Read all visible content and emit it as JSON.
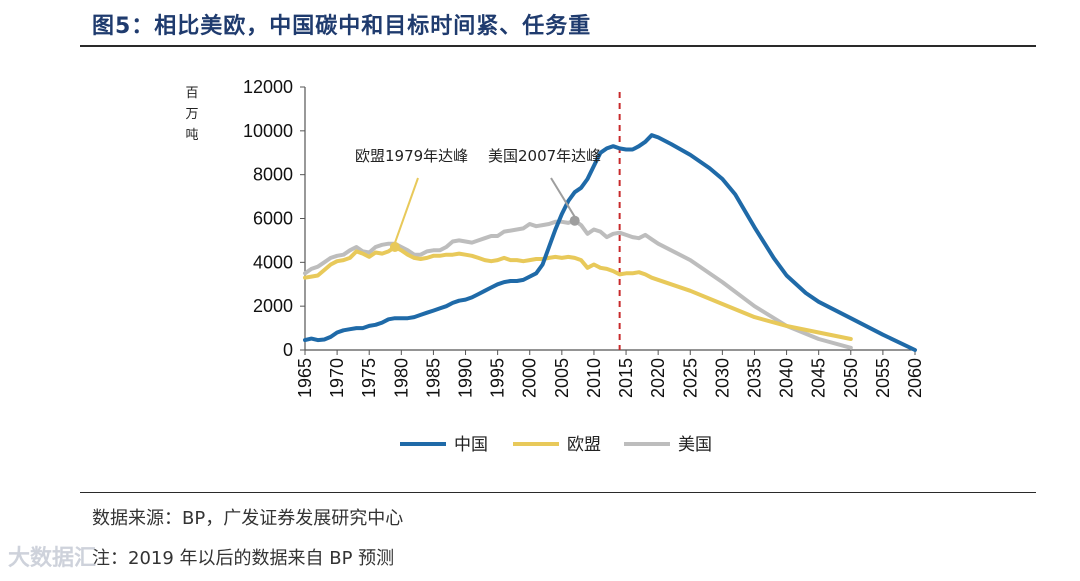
{
  "title": "图5：相比美欧，中国碳中和目标时间紧、任务重",
  "source": "数据来源：BP，广发证券发展研究中心",
  "note": "注：2019 年以后的数据来自 BP 预测",
  "watermark": "大数据汇",
  "colors": {
    "china": "#1f6aa8",
    "eu": "#e8c95a",
    "us": "#bdbdbd",
    "marker": "#c8292b"
  },
  "chart_data": {
    "type": "line",
    "title": "",
    "ylabel": "百万吨",
    "xlabel": "",
    "xlim": [
      1965,
      2060
    ],
    "ylim": [
      0,
      12000
    ],
    "yticks": [
      0,
      2000,
      4000,
      6000,
      8000,
      10000,
      12000
    ],
    "xticks": [
      1965,
      1970,
      1975,
      1980,
      1985,
      1990,
      1995,
      2000,
      2005,
      2010,
      2015,
      2020,
      2025,
      2030,
      2035,
      2040,
      2045,
      2050,
      2055,
      2060
    ],
    "grid": false,
    "legend_position": "bottom",
    "vline_year": 2014,
    "series": [
      {
        "name": "中国",
        "key": "china",
        "points": [
          [
            1965,
            450
          ],
          [
            1966,
            520
          ],
          [
            1967,
            450
          ],
          [
            1968,
            480
          ],
          [
            1969,
            600
          ],
          [
            1970,
            800
          ],
          [
            1971,
            900
          ],
          [
            1972,
            950
          ],
          [
            1973,
            1000
          ],
          [
            1974,
            1000
          ],
          [
            1975,
            1100
          ],
          [
            1976,
            1150
          ],
          [
            1977,
            1250
          ],
          [
            1978,
            1400
          ],
          [
            1979,
            1450
          ],
          [
            1980,
            1450
          ],
          [
            1981,
            1450
          ],
          [
            1982,
            1500
          ],
          [
            1983,
            1600
          ],
          [
            1984,
            1700
          ],
          [
            1985,
            1800
          ],
          [
            1986,
            1900
          ],
          [
            1987,
            2000
          ],
          [
            1988,
            2150
          ],
          [
            1989,
            2250
          ],
          [
            1990,
            2300
          ],
          [
            1991,
            2400
          ],
          [
            1992,
            2550
          ],
          [
            1993,
            2700
          ],
          [
            1994,
            2850
          ],
          [
            1995,
            3000
          ],
          [
            1996,
            3100
          ],
          [
            1997,
            3150
          ],
          [
            1998,
            3150
          ],
          [
            1999,
            3200
          ],
          [
            2000,
            3350
          ],
          [
            2001,
            3500
          ],
          [
            2002,
            3900
          ],
          [
            2003,
            4700
          ],
          [
            2004,
            5500
          ],
          [
            2005,
            6200
          ],
          [
            2006,
            6800
          ],
          [
            2007,
            7200
          ],
          [
            2008,
            7400
          ],
          [
            2009,
            7800
          ],
          [
            2010,
            8400
          ],
          [
            2011,
            9000
          ],
          [
            2012,
            9200
          ],
          [
            2013,
            9300
          ],
          [
            2014,
            9200
          ],
          [
            2015,
            9150
          ],
          [
            2016,
            9150
          ],
          [
            2017,
            9300
          ],
          [
            2018,
            9500
          ],
          [
            2019,
            9800
          ],
          [
            2020,
            9700
          ],
          [
            2022,
            9400
          ],
          [
            2025,
            8900
          ],
          [
            2028,
            8300
          ],
          [
            2030,
            7800
          ],
          [
            2032,
            7100
          ],
          [
            2035,
            5600
          ],
          [
            2038,
            4200
          ],
          [
            2040,
            3400
          ],
          [
            2043,
            2600
          ],
          [
            2045,
            2200
          ],
          [
            2050,
            1450
          ],
          [
            2055,
            700
          ],
          [
            2060,
            0
          ]
        ]
      },
      {
        "name": "欧盟",
        "key": "eu",
        "points": [
          [
            1965,
            3300
          ],
          [
            1966,
            3350
          ],
          [
            1967,
            3400
          ],
          [
            1968,
            3650
          ],
          [
            1969,
            3900
          ],
          [
            1970,
            4050
          ],
          [
            1971,
            4100
          ],
          [
            1972,
            4200
          ],
          [
            1973,
            4500
          ],
          [
            1974,
            4400
          ],
          [
            1975,
            4250
          ],
          [
            1976,
            4450
          ],
          [
            1977,
            4400
          ],
          [
            1978,
            4500
          ],
          [
            1979,
            4700
          ],
          [
            1980,
            4550
          ],
          [
            1981,
            4350
          ],
          [
            1982,
            4200
          ],
          [
            1983,
            4150
          ],
          [
            1984,
            4200
          ],
          [
            1985,
            4300
          ],
          [
            1986,
            4300
          ],
          [
            1987,
            4350
          ],
          [
            1988,
            4350
          ],
          [
            1989,
            4400
          ],
          [
            1990,
            4350
          ],
          [
            1991,
            4300
          ],
          [
            1992,
            4200
          ],
          [
            1993,
            4100
          ],
          [
            1994,
            4050
          ],
          [
            1995,
            4100
          ],
          [
            1996,
            4200
          ],
          [
            1997,
            4100
          ],
          [
            1998,
            4100
          ],
          [
            1999,
            4050
          ],
          [
            2000,
            4100
          ],
          [
            2001,
            4150
          ],
          [
            2002,
            4150
          ],
          [
            2003,
            4200
          ],
          [
            2004,
            4250
          ],
          [
            2005,
            4200
          ],
          [
            2006,
            4250
          ],
          [
            2007,
            4200
          ],
          [
            2008,
            4100
          ],
          [
            2009,
            3750
          ],
          [
            2010,
            3900
          ],
          [
            2011,
            3750
          ],
          [
            2012,
            3700
          ],
          [
            2013,
            3600
          ],
          [
            2014,
            3450
          ],
          [
            2015,
            3500
          ],
          [
            2016,
            3500
          ],
          [
            2017,
            3550
          ],
          [
            2018,
            3450
          ],
          [
            2019,
            3300
          ],
          [
            2025,
            2700
          ],
          [
            2030,
            2100
          ],
          [
            2035,
            1500
          ],
          [
            2040,
            1100
          ],
          [
            2045,
            800
          ],
          [
            2050,
            500
          ]
        ]
      },
      {
        "name": "美国",
        "key": "us",
        "points": [
          [
            1965,
            3500
          ],
          [
            1966,
            3700
          ],
          [
            1967,
            3800
          ],
          [
            1968,
            4000
          ],
          [
            1969,
            4200
          ],
          [
            1970,
            4300
          ],
          [
            1971,
            4350
          ],
          [
            1972,
            4550
          ],
          [
            1973,
            4700
          ],
          [
            1974,
            4500
          ],
          [
            1975,
            4450
          ],
          [
            1976,
            4700
          ],
          [
            1977,
            4800
          ],
          [
            1978,
            4850
          ],
          [
            1979,
            4850
          ],
          [
            1980,
            4700
          ],
          [
            1981,
            4550
          ],
          [
            1982,
            4350
          ],
          [
            1983,
            4350
          ],
          [
            1984,
            4500
          ],
          [
            1985,
            4550
          ],
          [
            1986,
            4550
          ],
          [
            1987,
            4700
          ],
          [
            1988,
            4950
          ],
          [
            1989,
            5000
          ],
          [
            1990,
            4950
          ],
          [
            1991,
            4900
          ],
          [
            1992,
            5000
          ],
          [
            1993,
            5100
          ],
          [
            1994,
            5200
          ],
          [
            1995,
            5200
          ],
          [
            1996,
            5400
          ],
          [
            1997,
            5450
          ],
          [
            1998,
            5500
          ],
          [
            1999,
            5550
          ],
          [
            2000,
            5750
          ],
          [
            2001,
            5650
          ],
          [
            2002,
            5700
          ],
          [
            2003,
            5750
          ],
          [
            2004,
            5850
          ],
          [
            2005,
            5850
          ],
          [
            2006,
            5800
          ],
          [
            2007,
            5900
          ],
          [
            2008,
            5700
          ],
          [
            2009,
            5300
          ],
          [
            2010,
            5500
          ],
          [
            2011,
            5400
          ],
          [
            2012,
            5150
          ],
          [
            2013,
            5300
          ],
          [
            2014,
            5350
          ],
          [
            2015,
            5250
          ],
          [
            2016,
            5150
          ],
          [
            2017,
            5100
          ],
          [
            2018,
            5250
          ],
          [
            2019,
            5050
          ],
          [
            2020,
            4850
          ],
          [
            2025,
            4100
          ],
          [
            2030,
            3100
          ],
          [
            2035,
            2000
          ],
          [
            2040,
            1100
          ],
          [
            2045,
            500
          ],
          [
            2050,
            100
          ]
        ]
      }
    ],
    "annotations": [
      {
        "text": "欧盟1979年达峰",
        "year": 1979,
        "value": 4700,
        "series": "eu"
      },
      {
        "text": "美国2007年达峰",
        "year": 2007,
        "value": 5900,
        "series": "us"
      }
    ]
  }
}
